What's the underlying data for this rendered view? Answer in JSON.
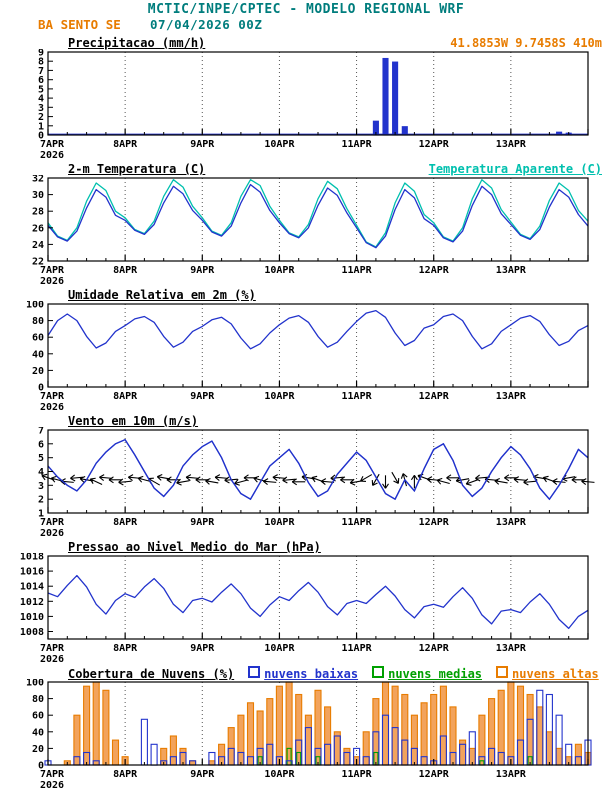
{
  "header": {
    "title": "MCTIC/INPE/CPTEC - MODELO REGIONAL WRF",
    "station": "BA SENTO SE",
    "run": "07/04/2026 00Z",
    "location": "41.8853W 9.7458S 410m"
  },
  "colors": {
    "teal": "#007d7d",
    "orange": "#e87c00",
    "blue": "#2233cc",
    "cyan": "#00c0ae",
    "green": "#00a000",
    "orange_bar": "#f2a35c",
    "black": "#000000"
  },
  "chart_data": {
    "categories": [
      "7APR",
      "8APR",
      "9APR",
      "10APR",
      "11APR",
      "12APR",
      "13APR"
    ],
    "year": "2026",
    "x_hours_range": [
      0,
      168
    ],
    "points_step_hours": 3,
    "panels": [
      {
        "id": "precipitation",
        "type": "bar",
        "title": "Precipitacao (mm/h)",
        "right_label": "41.8853W 9.7458S 410m",
        "ylim": [
          0,
          9
        ],
        "yticks": [
          0,
          1,
          2,
          3,
          4,
          5,
          6,
          7,
          8,
          9
        ],
        "baseline": true,
        "series": [
          {
            "name": "Precipitacao (mm/h)",
            "color": "#2233cc",
            "style": "fill",
            "width": 5,
            "values": [
              0,
              0,
              0,
              0,
              0,
              0,
              0,
              0,
              0,
              0,
              0,
              0,
              0,
              0,
              0,
              0,
              0,
              0,
              0,
              0,
              0,
              0,
              0,
              0,
              0,
              0,
              0,
              0,
              0,
              0,
              0,
              0,
              0,
              0,
              1.5,
              8.3,
              7.9,
              0.9,
              0,
              0,
              0,
              0,
              0,
              0,
              0,
              0,
              0,
              0,
              0,
              0,
              0,
              0,
              0,
              0.3,
              0.2,
              0,
              0
            ]
          }
        ]
      },
      {
        "id": "temperature",
        "type": "line",
        "title": "2-m Temperatura (C)",
        "right_label": "Temperatura Aparente (C)",
        "ylim": [
          22,
          32
        ],
        "yticks": [
          22,
          24,
          26,
          28,
          30,
          32
        ],
        "series": [
          {
            "name": "2-m Temperatura (C)",
            "color": "#2233cc",
            "values": [
              26.3,
              24.9,
              24.4,
              25.6,
              28.4,
              30.6,
              29.7,
              27.5,
              26.9,
              25.7,
              25.2,
              26.4,
              29.0,
              31.0,
              30.1,
              28.1,
              26.9,
              25.5,
              25.0,
              26.2,
              29.0,
              31.2,
              30.3,
              28.1,
              26.6,
              25.3,
              24.8,
              26.0,
              28.7,
              30.8,
              29.9,
              27.8,
              26.0,
              24.2,
              23.6,
              25.0,
              28.2,
              30.6,
              29.6,
              27.1,
              26.3,
              24.8,
              24.3,
              25.6,
              28.7,
              31.0,
              30.0,
              27.7,
              26.4,
              25.1,
              24.6,
              25.8,
              28.5,
              30.6,
              29.7,
              27.6,
              26.2
            ]
          },
          {
            "name": "Temperatura Aparente (C)",
            "color": "#00c0ae",
            "values": [
              26.6,
              25.0,
              24.5,
              26.0,
              29.2,
              31.4,
              30.5,
              28.0,
              27.2,
              25.8,
              25.3,
              26.8,
              29.8,
              31.8,
              30.9,
              28.6,
              27.2,
              25.6,
              25.1,
              26.6,
              29.8,
              31.8,
              31.1,
              28.6,
              26.9,
              25.4,
              24.9,
              26.4,
              29.5,
              31.6,
              30.7,
              28.3,
              26.3,
              24.3,
              23.7,
              25.4,
              29.0,
              31.4,
              30.4,
              27.6,
              26.6,
              24.9,
              24.4,
              26.0,
              29.5,
              31.8,
              30.8,
              28.2,
              26.7,
              25.2,
              24.7,
              26.2,
              29.3,
              31.4,
              30.5,
              28.1,
              26.8
            ]
          }
        ]
      },
      {
        "id": "relative-humidity",
        "type": "line",
        "title": "Umidade Relativa em 2m (%)",
        "right_label": "",
        "ylim": [
          0,
          100
        ],
        "yticks": [
          0,
          20,
          40,
          60,
          80,
          100
        ],
        "series": [
          {
            "name": "Umidade Relativa em 2m (%)",
            "color": "#2233cc",
            "values": [
              62,
              80,
              88,
              80,
              61,
              47,
              53,
              67,
              74,
              82,
              85,
              78,
              61,
              48,
              54,
              67,
              73,
              81,
              84,
              76,
              59,
              46,
              52,
              65,
              75,
              83,
              86,
              78,
              61,
              48,
              54,
              67,
              79,
              89,
              92,
              84,
              65,
              50,
              56,
              71,
              75,
              85,
              88,
              80,
              61,
              46,
              52,
              67,
              75,
              83,
              86,
              79,
              63,
              50,
              55,
              68,
              74
            ]
          }
        ]
      },
      {
        "id": "wind-10m",
        "type": "wind",
        "title": "Vento em 10m (m/s)",
        "right_label": "",
        "ylim": [
          1,
          7
        ],
        "yticks": [
          1,
          2,
          3,
          4,
          5,
          6,
          7
        ],
        "series": [
          {
            "name": "Vento em 10m (m/s)",
            "color": "#2233cc",
            "values": [
              4.4,
              3.6,
              3.0,
              2.6,
              3.4,
              4.6,
              5.4,
              6.0,
              6.3,
              5.2,
              4.0,
              2.8,
              2.2,
              3.0,
              4.4,
              5.2,
              5.8,
              6.2,
              5.0,
              3.4,
              2.4,
              2.0,
              3.2,
              4.4,
              5.0,
              5.6,
              4.6,
              3.2,
              2.2,
              2.6,
              3.8,
              4.6,
              5.4,
              4.8,
              3.6,
              2.4,
              2.0,
              3.4,
              2.6,
              4.2,
              5.6,
              6.0,
              4.8,
              3.0,
              2.2,
              2.8,
              4.0,
              5.0,
              5.8,
              5.2,
              4.2,
              2.8,
              2.0,
              3.0,
              4.2,
              5.6,
              5.0
            ]
          }
        ],
        "barbs": {
          "name": "wind-direction-barbs",
          "color": "#000000",
          "value": 3.4,
          "dirs_deg": [
            200,
            195,
            185,
            175,
            190,
            205,
            185,
            180,
            175,
            185,
            195,
            210,
            190,
            180,
            170,
            185,
            180,
            190,
            185,
            175,
            165,
            180,
            195,
            185,
            185,
            175,
            180,
            190,
            200,
            185,
            175,
            180,
            170,
            150,
            120,
            90,
            60,
            255,
            270,
            200,
            185,
            195,
            180,
            170,
            160,
            175,
            185,
            190,
            180,
            185,
            175,
            190,
            200,
            185,
            170,
            180,
            185
          ]
        }
      },
      {
        "id": "sea-level-pressure",
        "type": "line",
        "title": "Pressao ao Nivel Medio do Mar (hPa)",
        "right_label": "",
        "ylim": [
          1007,
          1018
        ],
        "yticks": [
          1008,
          1010,
          1012,
          1014,
          1016,
          1018
        ],
        "series": [
          {
            "name": "Pressao ao Nivel Medio do Mar (hPa)",
            "color": "#2233cc",
            "values": [
              1013.1,
              1012.6,
              1014.1,
              1015.4,
              1013.9,
              1011.6,
              1010.3,
              1012.1,
              1013.0,
              1012.5,
              1013.9,
              1015.0,
              1013.7,
              1011.6,
              1010.5,
              1012.1,
              1012.4,
              1011.9,
              1013.2,
              1014.3,
              1013.0,
              1011.1,
              1010.0,
              1011.5,
              1012.6,
              1012.1,
              1013.4,
              1014.5,
              1013.2,
              1011.3,
              1010.2,
              1011.7,
              1012.1,
              1011.7,
              1012.9,
              1014.0,
              1012.7,
              1010.9,
              1009.8,
              1011.3,
              1011.6,
              1011.2,
              1012.6,
              1013.8,
              1012.4,
              1010.2,
              1009.0,
              1010.7,
              1010.9,
              1010.5,
              1011.9,
              1013.0,
              1011.6,
              1009.6,
              1008.4,
              1010.0,
              1010.8
            ]
          }
        ]
      },
      {
        "id": "cloud-cover",
        "type": "groupedbar",
        "title": "Cobertura de Nuvens (%)",
        "right_label": "",
        "ylim": [
          0,
          100
        ],
        "yticks": [
          0,
          20,
          40,
          60,
          80,
          100
        ],
        "series": [
          {
            "name": "nuvens baixas",
            "color": "#2233cc",
            "style": "outline",
            "width": 6,
            "values": [
              5,
              0,
              0,
              10,
              15,
              5,
              0,
              0,
              0,
              0,
              55,
              25,
              5,
              10,
              15,
              5,
              0,
              15,
              10,
              20,
              15,
              10,
              20,
              25,
              10,
              5,
              30,
              45,
              20,
              25,
              35,
              15,
              20,
              10,
              40,
              60,
              45,
              30,
              20,
              10,
              5,
              35,
              15,
              25,
              40,
              10,
              20,
              15,
              10,
              30,
              55,
              90,
              85,
              60,
              25,
              10,
              30
            ]
          },
          {
            "name": "nuvens medias",
            "color": "#00a000",
            "style": "outline",
            "width": 4,
            "values": [
              0,
              0,
              0,
              0,
              0,
              0,
              0,
              0,
              0,
              0,
              0,
              0,
              0,
              0,
              0,
              0,
              0,
              0,
              0,
              0,
              0,
              0,
              10,
              0,
              0,
              20,
              15,
              0,
              10,
              0,
              0,
              0,
              0,
              0,
              15,
              0,
              0,
              0,
              0,
              0,
              0,
              0,
              0,
              0,
              0,
              5,
              0,
              0,
              0,
              0,
              10,
              0,
              0,
              0,
              0,
              0,
              0
            ]
          },
          {
            "name": "nuvens altas",
            "color": "#e87c00",
            "fill": "#f2a35c",
            "style": "fill",
            "width": 6,
            "values": [
              0,
              0,
              5,
              60,
              95,
              100,
              90,
              30,
              10,
              0,
              0,
              0,
              20,
              35,
              20,
              5,
              0,
              5,
              25,
              45,
              60,
              75,
              65,
              80,
              95,
              100,
              85,
              60,
              90,
              70,
              40,
              20,
              10,
              40,
              80,
              100,
              95,
              85,
              60,
              75,
              85,
              95,
              70,
              30,
              20,
              60,
              80,
              90,
              100,
              95,
              85,
              70,
              40,
              20,
              10,
              25,
              15
            ]
          }
        ]
      }
    ]
  }
}
